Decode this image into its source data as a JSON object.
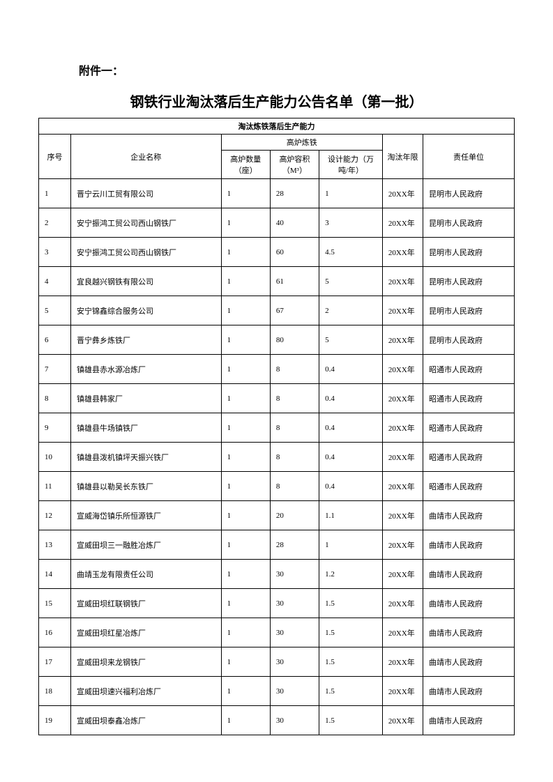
{
  "header": {
    "attachment_label": "附件一：",
    "title": "钢铁行业淘汰落后生产能力公告名单（第一批）"
  },
  "table": {
    "section_title": "淘汰炼铁落后生产能力",
    "sub_section_title": "高炉炼铁",
    "columns": {
      "seq": "序号",
      "company": "企业名称",
      "furnace_qty": "高炉数量（座）",
      "furnace_vol": "高炉容积（M³）",
      "design_cap": "设计能力（万吨/年）",
      "year": "淘汰年限",
      "responsible": "责任单位"
    },
    "rows": [
      {
        "seq": "1",
        "company": "晋宁云川工贸有限公司",
        "qty": "1",
        "vol": "28",
        "cap": "1",
        "year": "20XX年",
        "resp": "昆明市人民政府"
      },
      {
        "seq": "2",
        "company": "安宁振鸿工贸公司西山钢铁厂",
        "qty": "1",
        "vol": "40",
        "cap": "3",
        "year": "20XX年",
        "resp": "昆明市人民政府"
      },
      {
        "seq": "3",
        "company": "安宁振鸿工贸公司西山钢铁厂",
        "qty": "1",
        "vol": "60",
        "cap": "4.5",
        "year": "20XX年",
        "resp": "昆明市人民政府"
      },
      {
        "seq": "4",
        "company": "宜良越兴钢铁有限公司",
        "qty": "1",
        "vol": "61",
        "cap": "5",
        "year": "20XX年",
        "resp": "昆明市人民政府"
      },
      {
        "seq": "5",
        "company": "安宁锦鑫综合服务公司",
        "qty": "1",
        "vol": "67",
        "cap": "2",
        "year": "20XX年",
        "resp": "昆明市人民政府"
      },
      {
        "seq": "6",
        "company": "晋宁彝乡炼铁厂",
        "qty": "1",
        "vol": "80",
        "cap": "5",
        "year": "20XX年",
        "resp": "昆明市人民政府"
      },
      {
        "seq": "7",
        "company": "镇雄县赤水源冶炼厂",
        "qty": "1",
        "vol": "8",
        "cap": "0.4",
        "year": "20XX年",
        "resp": "昭通市人民政府"
      },
      {
        "seq": "8",
        "company": "镇雄县韩家厂",
        "qty": "1",
        "vol": "8",
        "cap": "0.4",
        "year": "20XX年",
        "resp": "昭通市人民政府"
      },
      {
        "seq": "9",
        "company": "镇雄县牛场镇铁厂",
        "qty": "1",
        "vol": "8",
        "cap": "0.4",
        "year": "20XX年",
        "resp": "昭通市人民政府"
      },
      {
        "seq": "10",
        "company": "镇雄县泼机镇坪天振兴铁厂",
        "qty": "1",
        "vol": "8",
        "cap": "0.4",
        "year": "20XX年",
        "resp": "昭通市人民政府"
      },
      {
        "seq": "11",
        "company": "镇雄县以勒吴长东铁厂",
        "qty": "1",
        "vol": "8",
        "cap": "0.4",
        "year": "20XX年",
        "resp": "昭通市人民政府"
      },
      {
        "seq": "12",
        "company": "宣威海岱镇乐所恒源铁厂",
        "qty": "1",
        "vol": "20",
        "cap": "1.1",
        "year": "20XX年",
        "resp": "曲靖市人民政府"
      },
      {
        "seq": "13",
        "company": "宣威田坝三一融胜冶炼厂",
        "qty": "1",
        "vol": "28",
        "cap": "1",
        "year": "20XX年",
        "resp": "曲靖市人民政府"
      },
      {
        "seq": "14",
        "company": "曲靖玉龙有限责任公司",
        "qty": "1",
        "vol": "30",
        "cap": "1.2",
        "year": "20XX年",
        "resp": "曲靖市人民政府"
      },
      {
        "seq": "15",
        "company": "宣威田坝红联钢铁厂",
        "qty": "1",
        "vol": "30",
        "cap": "1.5",
        "year": "20XX年",
        "resp": "曲靖市人民政府"
      },
      {
        "seq": "16",
        "company": "宣威田坝红星冶炼厂",
        "qty": "1",
        "vol": "30",
        "cap": "1.5",
        "year": "20XX年",
        "resp": "曲靖市人民政府"
      },
      {
        "seq": "17",
        "company": "宣威田坝来龙钢铁厂",
        "qty": "1",
        "vol": "30",
        "cap": "1.5",
        "year": "20XX年",
        "resp": "曲靖市人民政府"
      },
      {
        "seq": "18",
        "company": "宣威田坝速兴福利冶炼厂",
        "qty": "1",
        "vol": "30",
        "cap": "1.5",
        "year": "20XX年",
        "resp": "曲靖市人民政府"
      },
      {
        "seq": "19",
        "company": "宣威田坝泰鑫冶炼厂",
        "qty": "1",
        "vol": "30",
        "cap": "1.5",
        "year": "20XX年",
        "resp": "曲靖市人民政府"
      }
    ]
  }
}
